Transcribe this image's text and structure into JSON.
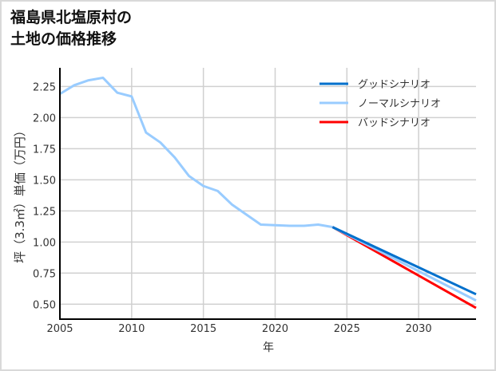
{
  "chart_data": {
    "type": "line",
    "title_lines": [
      "福島県北塩原村の",
      "土地の価格推移"
    ],
    "xlabel": "年",
    "ylabel": "坪（3.3㎡）単価（万円）",
    "xlim": [
      2005,
      2034
    ],
    "ylim": [
      0.38,
      2.4
    ],
    "xticks": [
      2005,
      2010,
      2015,
      2020,
      2025,
      2030
    ],
    "xtick_labels": [
      "2005",
      "2010",
      "2015",
      "2020",
      "2025",
      "2030"
    ],
    "yticks": [
      0.5,
      0.75,
      1.0,
      1.25,
      1.5,
      1.75,
      2.0,
      2.25
    ],
    "ytick_labels": [
      "0.50",
      "0.75",
      "1.00",
      "1.25",
      "1.50",
      "1.75",
      "2.00",
      "2.25"
    ],
    "grid": true,
    "legend_position": "top-right",
    "history": {
      "x": [
        2005,
        2006,
        2007,
        2008,
        2009,
        2010,
        2011,
        2012,
        2013,
        2014,
        2015,
        2016,
        2017,
        2018,
        2019,
        2020,
        2021,
        2022,
        2023,
        2024
      ],
      "y": [
        2.19,
        2.26,
        2.3,
        2.32,
        2.2,
        2.17,
        1.88,
        1.8,
        1.68,
        1.53,
        1.45,
        1.41,
        1.3,
        1.22,
        1.14,
        1.135,
        1.13,
        1.13,
        1.14,
        1.12
      ],
      "color": "#99ccff"
    },
    "series": [
      {
        "name": "グッドシナリオ",
        "color": "#0070cc",
        "x": [
          2024,
          2034
        ],
        "y": [
          1.12,
          0.58
        ]
      },
      {
        "name": "ノーマルシナリオ",
        "color": "#99ccff",
        "x": [
          2024,
          2034
        ],
        "y": [
          1.12,
          0.53
        ]
      },
      {
        "name": "バッドシナリオ",
        "color": "#ff0000",
        "x": [
          2024,
          2034
        ],
        "y": [
          1.12,
          0.47
        ]
      }
    ]
  }
}
